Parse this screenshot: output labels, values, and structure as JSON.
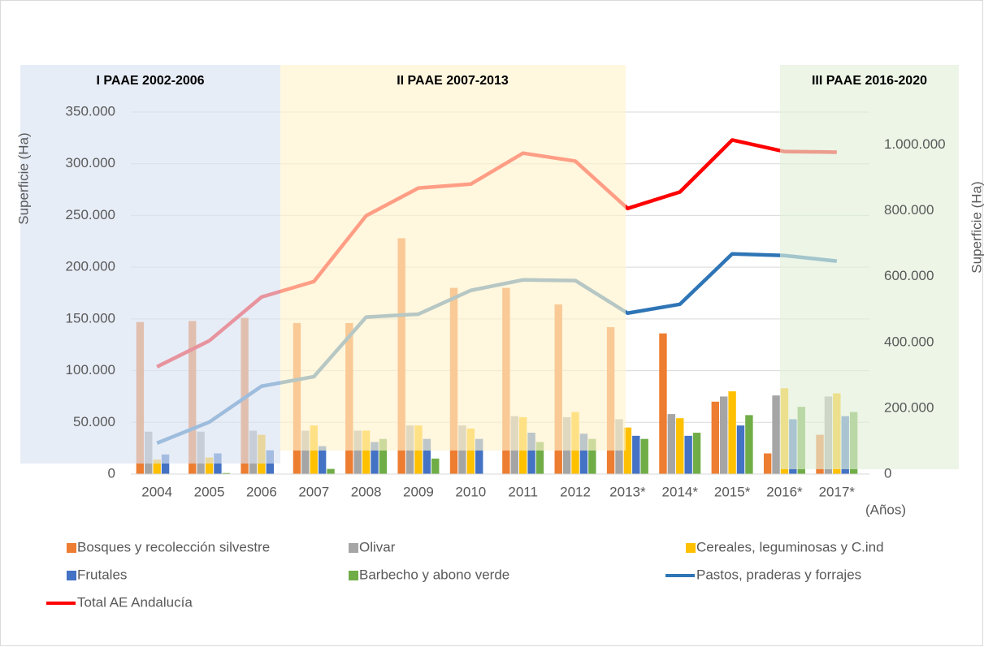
{
  "chart_data": {
    "type": "bar-line",
    "annotations": [
      "I PAAE 2002-2006",
      "II PAAE 2007-2013",
      "III PAAE 2016-2020"
    ],
    "ylabel": "Superficie (Ha)",
    "y2label": "Superficie (Ha)",
    "xlabel": "(Años)",
    "categories": [
      "2004",
      "2005",
      "2006",
      "2007",
      "2008",
      "2009",
      "2010",
      "2011",
      "2012",
      "2013*",
      "2014*",
      "2015*",
      "2016*",
      "2017*"
    ],
    "series": [
      {
        "name": "Bosques y recolección silvestre",
        "color": "#ed7d31",
        "kind": "bar",
        "values": [
          147000,
          148000,
          151000,
          146000,
          146000,
          228000,
          180000,
          180000,
          164000,
          142000,
          136000,
          70000,
          20000,
          38000
        ]
      },
      {
        "name": "Olivar",
        "color": "#a5a5a5",
        "kind": "bar",
        "values": [
          41000,
          41000,
          42000,
          42000,
          42000,
          47000,
          47000,
          56000,
          55000,
          53000,
          58000,
          75000,
          76000,
          75000
        ]
      },
      {
        "name": "Cereales, leguminosas y C.ind",
        "color": "#ffc000",
        "kind": "bar",
        "values": [
          14000,
          16000,
          38000,
          47000,
          42000,
          47000,
          44000,
          55000,
          60000,
          45000,
          54000,
          80000,
          83000,
          78000
        ]
      },
      {
        "name": "Frutales",
        "color": "#4472c4",
        "kind": "bar",
        "values": [
          19000,
          20000,
          23000,
          27000,
          31000,
          34000,
          34000,
          40000,
          39000,
          37000,
          37000,
          47000,
          53000,
          56000
        ]
      },
      {
        "name": "Barbecho y abono verde",
        "color": "#70ad47",
        "kind": "bar",
        "values": [
          0,
          1000,
          0,
          5000,
          34000,
          15000,
          0,
          31000,
          34000,
          34000,
          40000,
          57000,
          65000,
          60000
        ]
      },
      {
        "name": "Pastos, praderas y forrajes",
        "color": "#2e75b6",
        "kind": "line",
        "axis": "y2",
        "values": [
          94000,
          158000,
          267000,
          296000,
          477000,
          486000,
          558000,
          590000,
          588000,
          489000,
          516000,
          669000,
          664000,
          647000
        ]
      },
      {
        "name": "Total AE Andalucía",
        "color": "#ff0000",
        "kind": "line",
        "axis": "y2",
        "values": [
          326000,
          405000,
          538000,
          585000,
          785000,
          869000,
          881000,
          975000,
          951000,
          807000,
          857000,
          1015000,
          980000,
          978000
        ]
      }
    ],
    "ylim": [
      0,
      350000
    ],
    "yticks": [
      0,
      {
        "value": 50000,
        "label": "50.000"
      },
      {
        "value": 100000,
        "label": "100.000"
      },
      {
        "value": 150000,
        "label": "150.000"
      },
      {
        "value": 200000,
        "label": "200.000"
      },
      {
        "value": 250000,
        "label": "250.000"
      },
      {
        "value": 300000,
        "label": "300.000"
      },
      {
        "value": 350000,
        "label": "350.000"
      }
    ],
    "y2lim": [
      0,
      1100000
    ],
    "y2ticks": [
      0,
      {
        "value": 200000,
        "label": "200.000"
      },
      {
        "value": 400000,
        "label": "400.000"
      },
      {
        "value": 600000,
        "label": "600.000"
      },
      {
        "value": 800000,
        "label": "800.000"
      },
      {
        "value": 1000000,
        "label": "1.000.000"
      }
    ],
    "grid": true
  }
}
